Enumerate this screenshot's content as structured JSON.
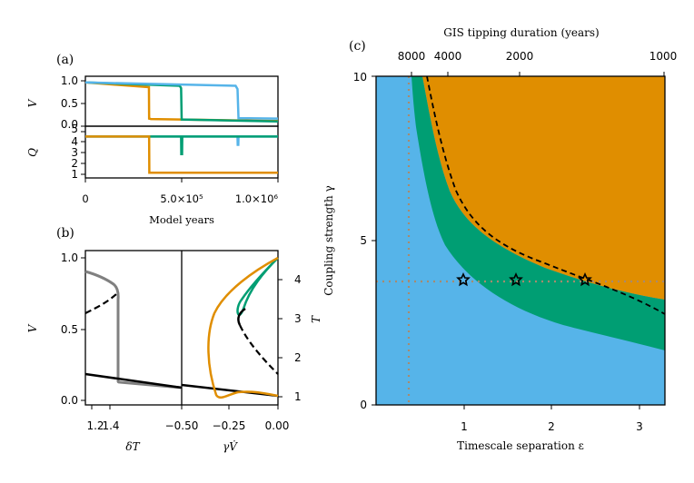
{
  "colors": {
    "blue": "#56B4E9",
    "green": "#009E73",
    "orange": "#E08E00",
    "grey": "#808080",
    "dotted": "#A88A6E",
    "black": "#000000"
  },
  "chart_data": [
    {
      "panel": "a-top",
      "label": "(a)",
      "type": "line",
      "ylabel": "V",
      "xlim": [
        0,
        1000000
      ],
      "ylim": [
        0,
        1.05
      ],
      "yticks": [
        "1.0",
        "0.5",
        "0.0"
      ],
      "series": [
        {
          "name": "orange",
          "x": [
            0,
            330000,
            331000,
            340000,
            1000000
          ],
          "values": [
            0.92,
            0.82,
            0.16,
            0.15,
            0.11
          ]
        },
        {
          "name": "green",
          "x": [
            0,
            490000,
            497000,
            500000,
            1000000
          ],
          "values": [
            0.92,
            0.85,
            0.8,
            0.14,
            0.1
          ]
        },
        {
          "name": "blue",
          "x": [
            0,
            780000,
            790000,
            795000,
            1000000
          ],
          "values": [
            0.92,
            0.85,
            0.78,
            0.17,
            0.16
          ]
        }
      ]
    },
    {
      "panel": "a-bottom",
      "type": "line",
      "ylabel": "Q",
      "xlabel": "Model years",
      "xlim": [
        0,
        1000000
      ],
      "ylim": [
        0.6,
        5.6
      ],
      "yticks": [
        "5",
        "4",
        "3",
        "2",
        "1"
      ],
      "xticks": [
        "0",
        "5.0×10⁵",
        "1.0×10⁶"
      ],
      "series": [
        {
          "name": "blue",
          "x": [
            0,
            790000,
            791000,
            794000,
            795000,
            1000000
          ],
          "values": [
            4.6,
            4.6,
            3.8,
            3.8,
            4.6,
            4.6
          ]
        },
        {
          "name": "green",
          "x": [
            0,
            497000,
            498000,
            502000,
            503000,
            1000000
          ],
          "values": [
            4.6,
            4.6,
            2.9,
            2.9,
            4.6,
            4.6
          ]
        },
        {
          "name": "orange",
          "x": [
            0,
            331000,
            332000,
            1000000
          ],
          "values": [
            4.6,
            4.6,
            1.1,
            1.1
          ]
        }
      ]
    },
    {
      "panel": "b-left",
      "label": "(b)",
      "type": "line",
      "ylabel": "V",
      "xlabel": "δT",
      "yticks": [
        "1.0",
        "0.5",
        "0.0"
      ],
      "xticks": [
        "1.2",
        "1.4"
      ],
      "notes": "grey trajectory with black stable/unstable equilibrium branches"
    },
    {
      "panel": "b-right",
      "type": "line",
      "xlabel": "γV̇",
      "ylabel": "T",
      "xticks": [
        "−0.50",
        "−0.25",
        "0.00"
      ],
      "yticks": [
        "4",
        "3",
        "2",
        "1"
      ],
      "notes": "phase-space trajectories (orange, green, black) with dashed unstable branch"
    },
    {
      "panel": "c",
      "label": "(c)",
      "type": "heatmap",
      "title": "GIS tipping duration (years)",
      "xlabel": "Timescale separation ε",
      "ylabel": "Coupling strength γ",
      "xlim": [
        0,
        3.3
      ],
      "ylim": [
        0,
        10
      ],
      "xticks": [
        "1",
        "2",
        "3"
      ],
      "yticks": [
        "10",
        "5",
        "0"
      ],
      "top_ticks": [
        "8000",
        "4000",
        "2000",
        "1000"
      ],
      "regions": [
        "no tipping (blue)",
        "transient tipping (green)",
        "full tipping (orange)"
      ],
      "reference_lines": {
        "epsilon": 0.4,
        "gamma": 3.75
      },
      "markers": [
        {
          "epsilon": 1.0,
          "gamma": 3.8
        },
        {
          "epsilon": 1.6,
          "gamma": 3.8
        },
        {
          "epsilon": 2.4,
          "gamma": 3.8
        }
      ]
    }
  ],
  "labels": {
    "panel_a": "(a)",
    "panel_b": "(b)",
    "panel_c": "(c)",
    "a_ylabel_top": "V",
    "a_ylabel_bottom": "Q",
    "a_xlabel": "Model years",
    "b_ylabel": "V",
    "b_right_ylabel": "T",
    "b_xlabel_left": "δT",
    "b_xlabel_right": "γV̇",
    "c_top_title": "GIS tipping duration (years)",
    "c_xlabel": "Timescale separation ε",
    "c_ylabel": "Coupling strength γ"
  },
  "ticks": {
    "a_top_y": [
      "1.0",
      "0.5",
      "0.0"
    ],
    "a_bottom_y": [
      "5",
      "4",
      "3",
      "2",
      "1"
    ],
    "a_x": [
      "0",
      "5.0×10⁵",
      "1.0×10⁶"
    ],
    "b_left_y": [
      "1.0",
      "0.5",
      "0.0"
    ],
    "b_left_x": [
      "1.2",
      "1.4"
    ],
    "b_right_x": [
      "−0.50",
      "−0.25",
      "0.00"
    ],
    "b_right_y": [
      "4",
      "3",
      "2",
      "1"
    ],
    "c_x": [
      "1",
      "2",
      "3"
    ],
    "c_y": [
      "10",
      "5",
      "0"
    ],
    "c_top": [
      "8000",
      "4000",
      "2000",
      "1000"
    ]
  }
}
